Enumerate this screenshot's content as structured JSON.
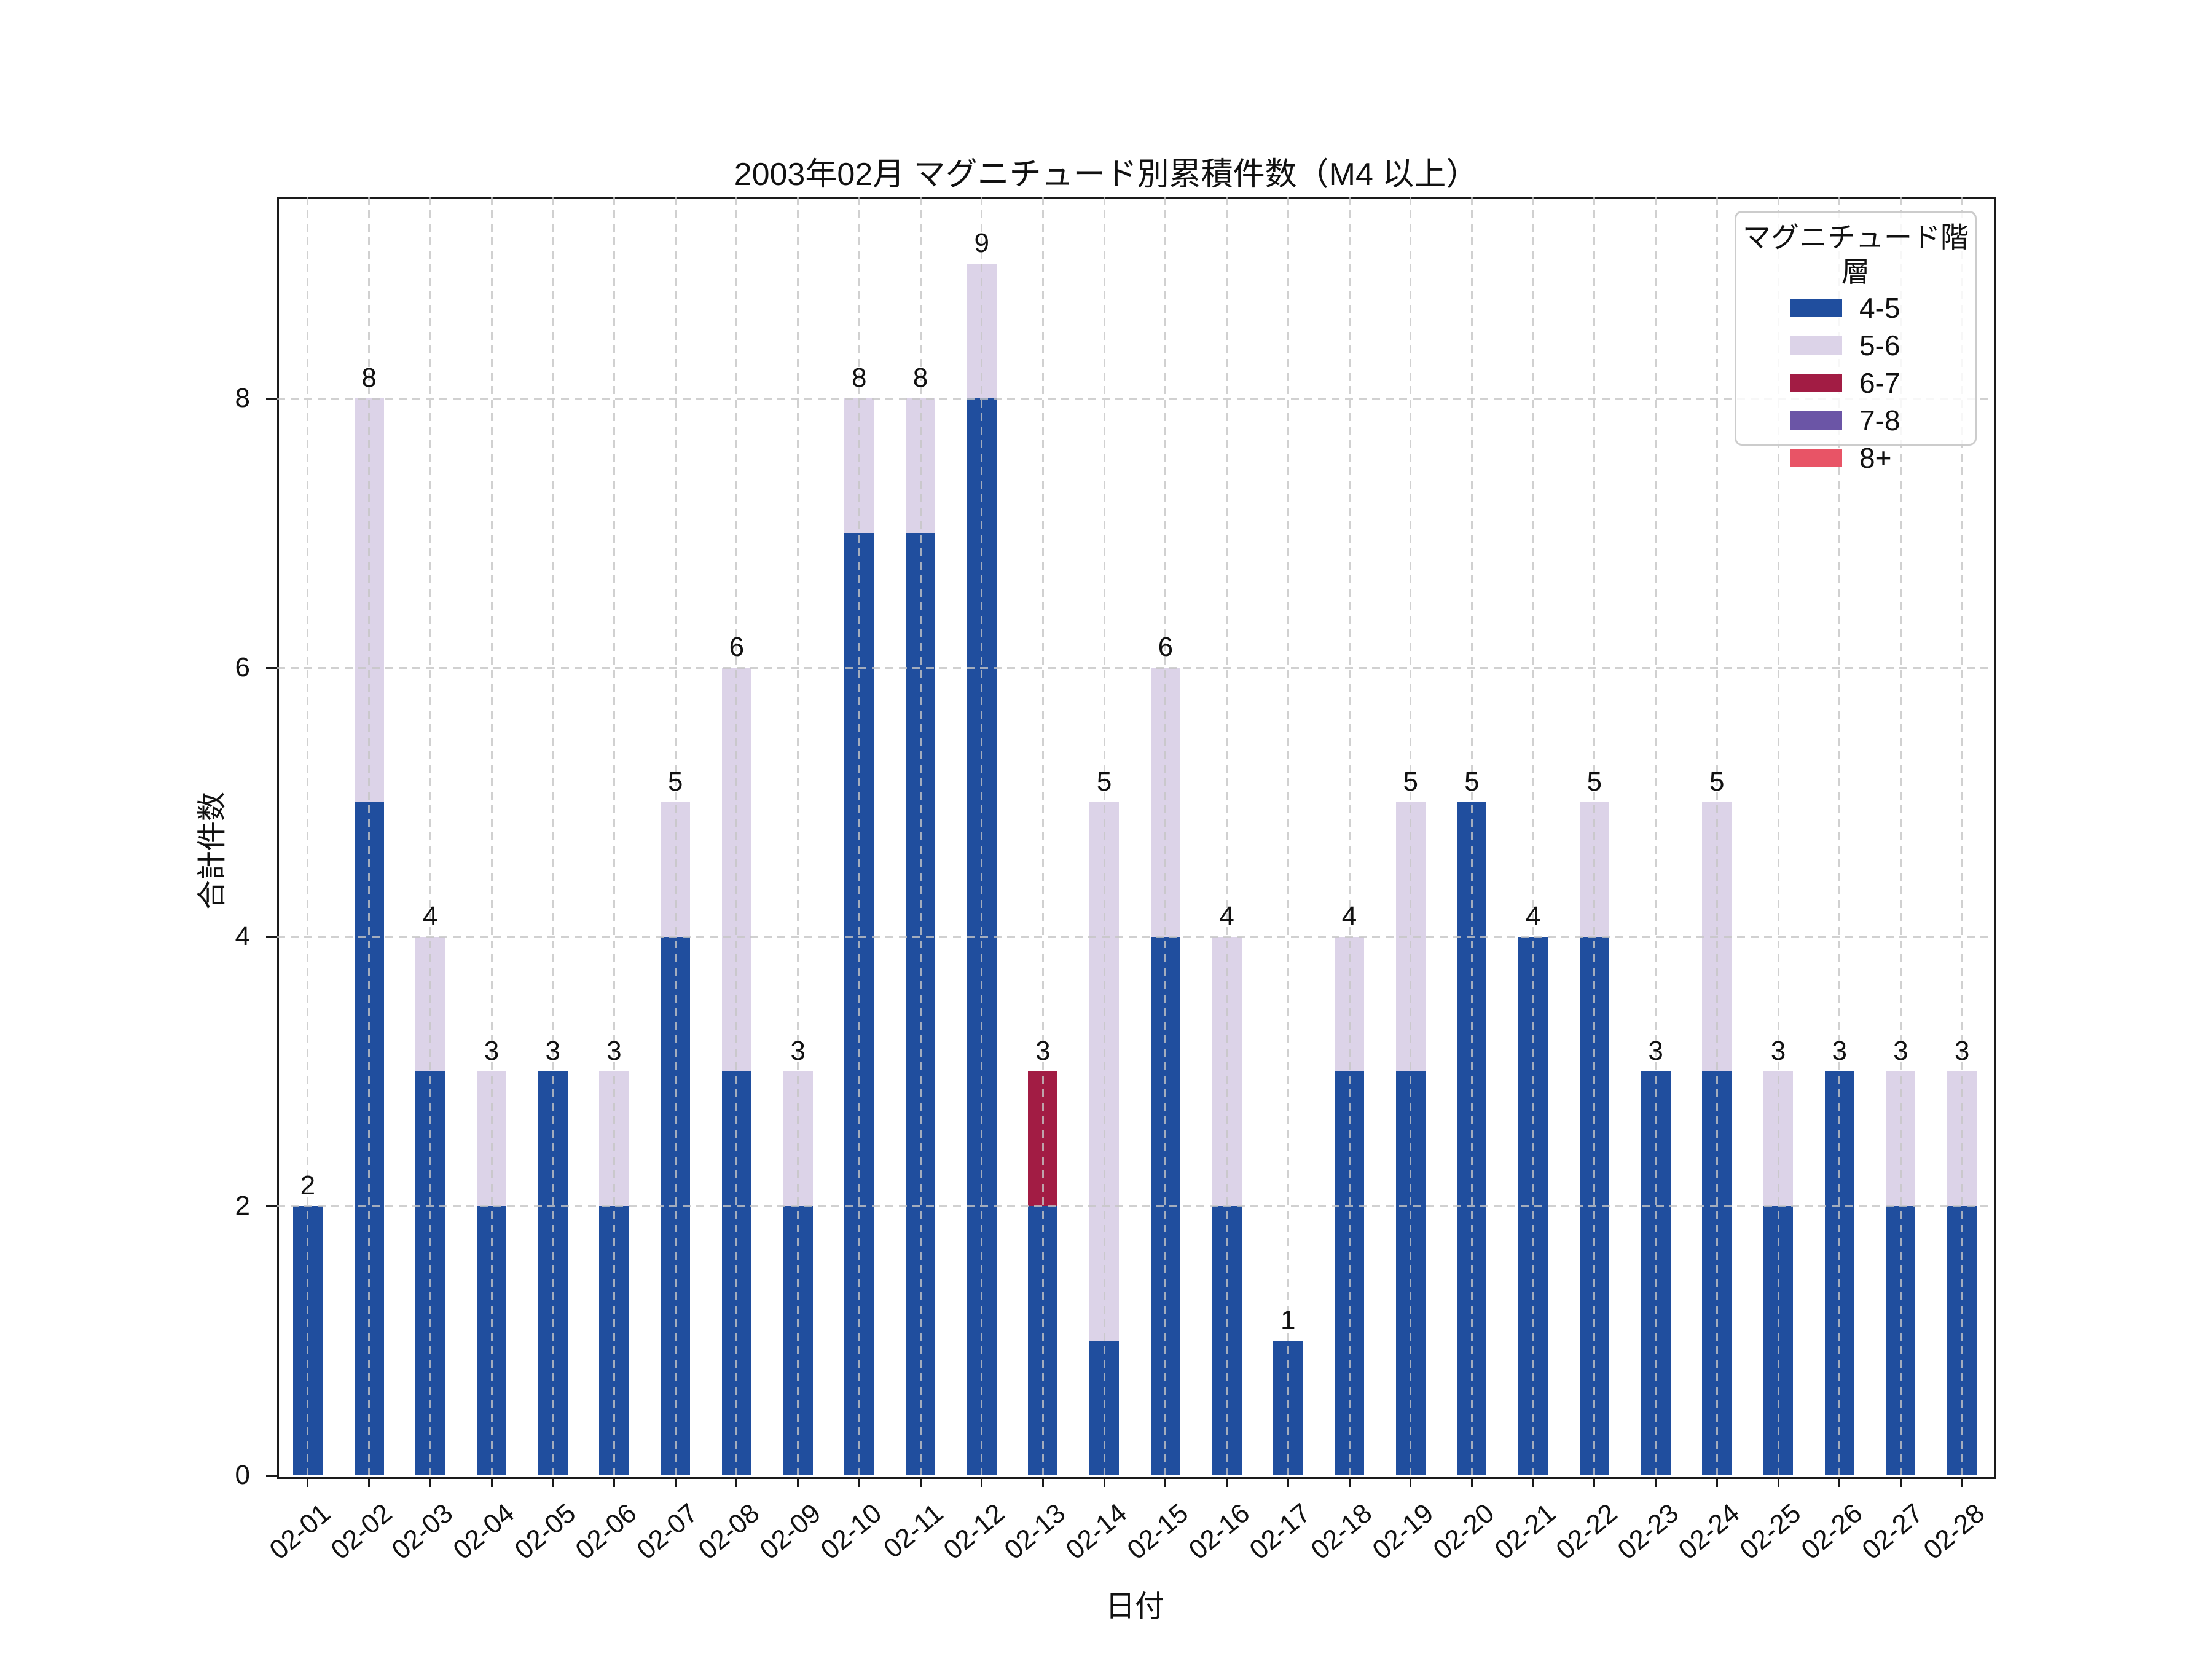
{
  "figure": {
    "background": "#ffffff",
    "spine_color": "#1a1a1a",
    "grid_color": "#c5c5c5",
    "text_color": "#111111"
  },
  "chart_data": {
    "type": "bar",
    "stacked": true,
    "title": "2003年02月 マグニチュード別累積件数（M4 以上）",
    "xlabel": "日付",
    "ylabel": "合計件数",
    "legend": {
      "title": "マグニチュード階層",
      "position": "upper right",
      "entries": [
        "4-5",
        "5-6",
        "6-7",
        "7-8",
        "8+"
      ]
    },
    "categories": [
      "02-01",
      "02-02",
      "02-03",
      "02-04",
      "02-05",
      "02-06",
      "02-07",
      "02-08",
      "02-09",
      "02-10",
      "02-11",
      "02-12",
      "02-13",
      "02-14",
      "02-15",
      "02-16",
      "02-17",
      "02-18",
      "02-19",
      "02-20",
      "02-21",
      "02-22",
      "02-23",
      "02-24",
      "02-25",
      "02-26",
      "02-27",
      "02-28"
    ],
    "series": [
      {
        "name": "4-5",
        "color": "#204E9E",
        "values": [
          2,
          5,
          3,
          2,
          3,
          2,
          4,
          3,
          2,
          7,
          7,
          8,
          2,
          1,
          4,
          2,
          1,
          3,
          3,
          5,
          4,
          4,
          3,
          3,
          2,
          3,
          2,
          2
        ]
      },
      {
        "name": "5-6",
        "color": "#DCD3E8",
        "values": [
          0,
          3,
          1,
          1,
          0,
          1,
          1,
          3,
          1,
          1,
          1,
          1,
          0,
          4,
          2,
          2,
          0,
          1,
          2,
          0,
          0,
          1,
          0,
          2,
          1,
          0,
          1,
          1
        ]
      },
      {
        "name": "6-7",
        "color": "#A21C44",
        "values": [
          0,
          0,
          0,
          0,
          0,
          0,
          0,
          0,
          0,
          0,
          0,
          0,
          1,
          0,
          0,
          0,
          0,
          0,
          0,
          0,
          0,
          0,
          0,
          0,
          0,
          0,
          0,
          0
        ]
      },
      {
        "name": "7-8",
        "color": "#6B55A6",
        "values": [
          0,
          0,
          0,
          0,
          0,
          0,
          0,
          0,
          0,
          0,
          0,
          0,
          0,
          0,
          0,
          0,
          0,
          0,
          0,
          0,
          0,
          0,
          0,
          0,
          0,
          0,
          0,
          0
        ]
      },
      {
        "name": "8+",
        "color": "#E85466",
        "values": [
          0,
          0,
          0,
          0,
          0,
          0,
          0,
          0,
          0,
          0,
          0,
          0,
          0,
          0,
          0,
          0,
          0,
          0,
          0,
          0,
          0,
          0,
          0,
          0,
          0,
          0,
          0,
          0
        ]
      }
    ],
    "totals": [
      2,
      8,
      4,
      3,
      3,
      3,
      5,
      6,
      3,
      8,
      8,
      9,
      3,
      5,
      6,
      4,
      1,
      4,
      5,
      5,
      4,
      5,
      3,
      5,
      3,
      3,
      3,
      3
    ],
    "yticks": [
      0,
      2,
      4,
      6,
      8
    ],
    "ylim": [
      0,
      9.5
    ],
    "grid": {
      "style": "dashed",
      "axes": "both",
      "drawn_above_bars": true
    }
  }
}
